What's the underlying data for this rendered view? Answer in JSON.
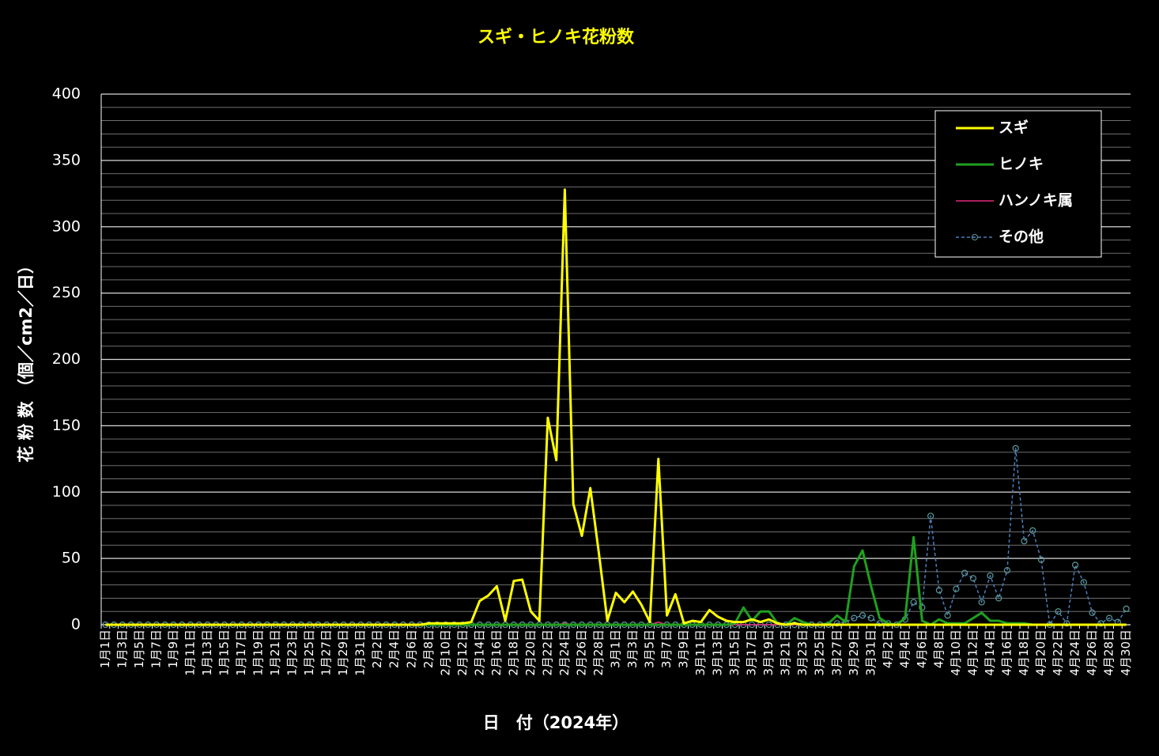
{
  "chart_data": {
    "type": "line",
    "title": "スギ・ヒノキ花粉数",
    "y_label": "花 粉 数 （個／cm2／日）",
    "x_label": "日　付（2024年）",
    "ylim": [
      0,
      400
    ],
    "yticks": [
      0,
      50,
      100,
      150,
      200,
      250,
      300,
      350,
      400
    ],
    "grid": true,
    "legend": "top-right",
    "categories": [
      "1月1日",
      null,
      "1月3日",
      null,
      "1月5日",
      null,
      "1月7日",
      null,
      "1月9日",
      null,
      "1月11日",
      null,
      "1月13日",
      null,
      "1月15日",
      null,
      "1月17日",
      null,
      "1月19日",
      null,
      "1月21日",
      null,
      "1月23日",
      null,
      "1月25日",
      null,
      "1月27日",
      null,
      "1月29日",
      null,
      "1月31日",
      null,
      "2月2日",
      null,
      "2月4日",
      null,
      "2月6日",
      null,
      "2月8日",
      null,
      "2月10日",
      null,
      "2月12日",
      null,
      "2月14日",
      null,
      "2月16日",
      null,
      "2月18日",
      null,
      "2月20日",
      null,
      "2月22日",
      null,
      "2月24日",
      null,
      "2月26日",
      null,
      "2月28日",
      null,
      "3月1日",
      null,
      "3月3日",
      null,
      "3月5日",
      null,
      "3月7日",
      null,
      "3月9日",
      null,
      "3月11日",
      null,
      "3月13日",
      null,
      "3月15日",
      null,
      "3月17日",
      null,
      "3月19日",
      null,
      "3月21日",
      null,
      "3月23日",
      null,
      "3月25日",
      null,
      "3月27日",
      null,
      "3月29日",
      null,
      "3月31日",
      null,
      "4月2日",
      null,
      "4月4日",
      null,
      "4月6日",
      null,
      "4月8日",
      null,
      "4月10日",
      null,
      "4月12日",
      null,
      "4月14日",
      null,
      "4月16日",
      null,
      "4月18日",
      null,
      "4月20日",
      null,
      "4月22日",
      null,
      "4月24日",
      null,
      "4月26日",
      null,
      "4月28日",
      null,
      "4月30日"
    ],
    "series": [
      {
        "name": "スギ",
        "color": "#ffff00",
        "values": [
          0,
          0,
          0,
          0,
          0,
          0,
          0,
          0,
          0,
          0,
          0,
          0,
          0,
          0,
          0,
          0,
          0,
          0,
          0,
          0,
          0,
          0,
          0,
          0,
          0,
          0,
          0,
          0,
          0,
          0,
          0,
          0,
          0,
          0,
          0,
          0,
          0,
          0,
          1,
          1,
          1,
          1,
          1,
          2,
          18,
          22,
          29,
          3,
          33,
          34,
          10,
          3,
          156,
          124,
          328,
          91,
          67,
          103,
          54,
          3,
          24,
          17,
          25,
          15,
          2,
          125,
          7,
          23,
          1,
          3,
          2,
          11,
          6,
          3,
          2,
          2,
          4,
          2,
          4,
          1,
          0,
          1,
          0,
          0,
          0,
          0,
          0,
          0,
          0,
          0,
          0,
          0,
          0,
          0,
          0,
          0,
          0,
          0,
          0,
          0,
          0,
          0,
          0,
          0,
          0,
          0,
          0,
          0,
          0,
          0,
          0,
          0,
          0,
          0,
          0,
          0,
          0,
          0,
          0,
          0,
          0
        ]
      },
      {
        "name": "ヒノキ",
        "color": "#1fa01f",
        "values": [
          0,
          0,
          0,
          0,
          0,
          0,
          0,
          0,
          0,
          0,
          0,
          0,
          0,
          0,
          0,
          0,
          0,
          0,
          0,
          0,
          0,
          0,
          0,
          0,
          0,
          0,
          0,
          0,
          0,
          0,
          0,
          0,
          0,
          0,
          0,
          0,
          0,
          0,
          0,
          0,
          0,
          0,
          0,
          0,
          0,
          0,
          0,
          0,
          0,
          0,
          0,
          0,
          0,
          0,
          0,
          0,
          0,
          0,
          0,
          0,
          0,
          0,
          0,
          0,
          0,
          0,
          0,
          0,
          0,
          0,
          0,
          0,
          0,
          0,
          1,
          13,
          3,
          10,
          10,
          1,
          0,
          5,
          2,
          0,
          0,
          1,
          7,
          2,
          44,
          56,
          29,
          5,
          1,
          0,
          5,
          66,
          3,
          0,
          4,
          1,
          1,
          1,
          5,
          9,
          3,
          3,
          1,
          1,
          1,
          0,
          0,
          0,
          0,
          0,
          0,
          0,
          0,
          0,
          0,
          0,
          0
        ]
      },
      {
        "name": "ハンノキ属",
        "color": "#e0287a",
        "values": [
          0,
          0,
          0,
          0,
          0,
          0,
          0,
          0,
          0,
          0,
          0,
          0,
          0,
          0,
          0,
          0,
          0,
          0,
          0,
          0,
          0,
          0,
          0,
          0,
          0,
          0,
          0,
          0,
          0,
          0,
          0,
          0,
          0,
          0,
          0,
          0,
          0,
          0,
          0,
          0,
          0,
          0,
          0,
          0,
          0,
          0,
          0,
          0,
          0,
          0,
          0,
          0,
          0,
          0,
          1,
          0,
          0,
          0,
          0,
          0,
          0,
          0,
          0,
          0,
          0,
          2,
          0,
          0,
          0,
          0,
          0,
          0,
          0,
          0,
          0,
          0,
          0,
          0,
          0,
          0,
          0,
          0,
          0,
          0,
          0,
          0,
          0,
          0,
          0,
          0,
          0,
          0,
          0,
          0,
          0,
          0,
          0,
          0,
          0,
          0,
          0,
          0,
          0,
          0,
          0,
          0,
          0,
          0,
          0,
          0,
          0,
          0,
          0,
          0,
          0,
          0,
          0,
          0,
          0,
          0,
          0
        ]
      },
      {
        "name": "その他",
        "color": "#4a7ebb",
        "values": [
          0,
          0,
          0,
          0,
          0,
          0,
          0,
          0,
          0,
          0,
          0,
          0,
          0,
          0,
          0,
          0,
          0,
          0,
          0,
          0,
          0,
          0,
          0,
          0,
          0,
          0,
          0,
          0,
          0,
          0,
          0,
          0,
          0,
          0,
          0,
          0,
          0,
          0,
          0,
          0,
          0,
          0,
          0,
          0,
          0,
          0,
          0,
          0,
          0,
          0,
          0,
          0,
          0,
          0,
          0,
          0,
          0,
          0,
          0,
          0,
          0,
          0,
          0,
          0,
          0,
          0,
          0,
          0,
          0,
          0,
          0,
          0,
          0,
          0,
          0,
          0,
          0,
          0,
          0,
          0,
          0,
          0,
          0,
          0,
          0,
          0,
          1,
          2,
          5,
          7,
          5,
          1,
          1,
          0,
          4,
          17,
          13,
          82,
          26,
          7,
          27,
          39,
          35,
          17,
          37,
          20,
          41,
          133,
          63,
          71,
          49,
          0,
          10,
          1,
          45,
          32,
          9,
          1,
          5,
          2,
          12
        ]
      }
    ]
  }
}
